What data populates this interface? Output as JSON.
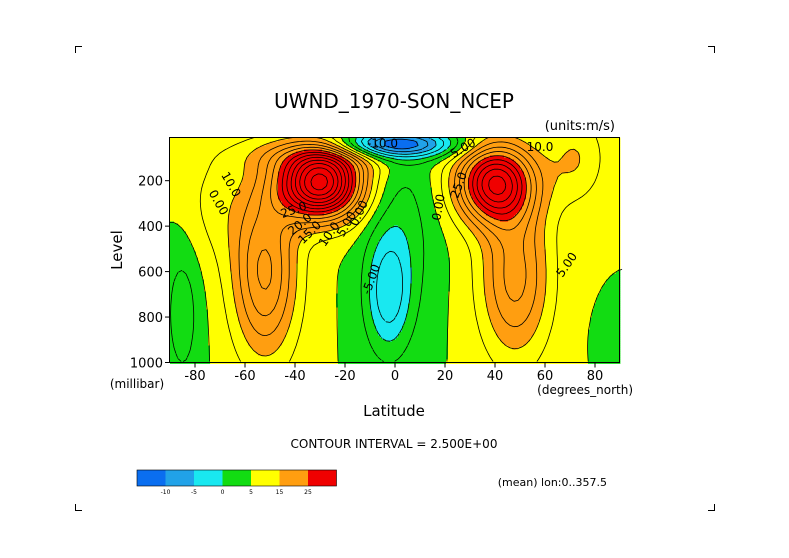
{
  "chart_data": {
    "type": "heatmap",
    "title": "UWND_1970-SON_NCEP",
    "units_note": "(units:m/s)",
    "xlabel": "Latitude",
    "ylabel": "Level",
    "x_units": "(degrees_north)",
    "y_units": "(millibar)",
    "xlim": [
      -90,
      90
    ],
    "ylim": [
      1000,
      10
    ],
    "x_ticks": [
      -80,
      -60,
      -40,
      -20,
      0,
      20,
      40,
      60,
      80
    ],
    "y_ticks": [
      200,
      400,
      600,
      800,
      1000
    ],
    "contour_interval_label": "CONTOUR INTERVAL = 2.500E+00",
    "contour_interval": 2.5,
    "footer_note": "(mean) lon:0..357.5",
    "color_levels": [
      -15,
      -10,
      -5,
      0,
      5,
      15,
      25
    ],
    "colorbar_tick_labels": [
      "-10",
      "-5",
      "0",
      "5",
      "15",
      "25"
    ],
    "colors": [
      "#0a6ef0",
      "#21a2e8",
      "#19e8f0",
      "#12dc12",
      "#ffff00",
      "#ff9e10",
      "#f00000"
    ],
    "contour_labels": [
      {
        "text": "10.0",
        "lat": -67,
        "lev": 225,
        "angle": 60
      },
      {
        "text": "0.00",
        "lat": -72,
        "lev": 305,
        "angle": 60
      },
      {
        "text": "25.0",
        "lat": -40,
        "lev": 345,
        "angle": -20
      },
      {
        "text": "20.0",
        "lat": -37,
        "lev": 405,
        "angle": -40
      },
      {
        "text": "15.0",
        "lat": -33,
        "lev": 440,
        "angle": -45
      },
      {
        "text": "10.0",
        "lat": -25,
        "lev": 445,
        "angle": -55
      },
      {
        "text": "5.00",
        "lat": -18,
        "lev": 400,
        "angle": -60
      },
      {
        "text": "0.00",
        "lat": -13,
        "lev": 350,
        "angle": -65
      },
      {
        "text": "-5.00",
        "lat": -8,
        "lev": 640,
        "angle": -70
      },
      {
        "text": "0.00",
        "lat": 19,
        "lev": 320,
        "angle": -80
      },
      {
        "text": "-10.0",
        "lat": -5,
        "lev": 55,
        "angle": 0
      },
      {
        "text": "5.00",
        "lat": 28,
        "lev": 72,
        "angle": -30
      },
      {
        "text": "10.0",
        "lat": 58,
        "lev": 70,
        "angle": 0
      },
      {
        "text": "25.0",
        "lat": 27,
        "lev": 225,
        "angle": -70
      },
      {
        "text": "5.00",
        "lat": 70,
        "lev": 580,
        "angle": -55
      }
    ]
  }
}
